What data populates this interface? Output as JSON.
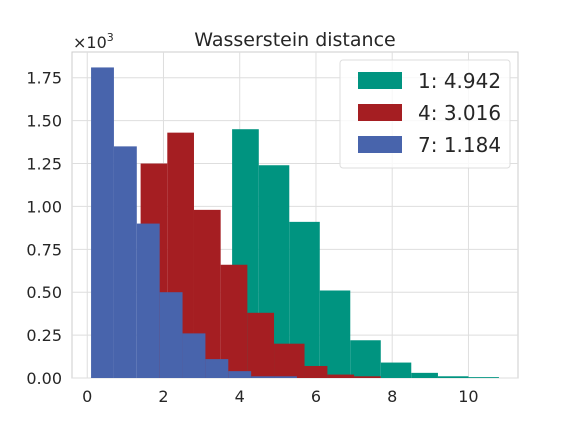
{
  "chart_data": {
    "type": "histogram",
    "title": "Wasserstein distance",
    "y_multiplier": {
      "base": "×10",
      "exponent": "3"
    },
    "xlabel": "",
    "ylabel": "",
    "xlim": [
      -0.4,
      11.3
    ],
    "ylim": [
      0,
      1.9
    ],
    "x_ticks": [
      0,
      2,
      4,
      6,
      8,
      10
    ],
    "x_tick_labels": [
      "0",
      "2",
      "4",
      "6",
      "8",
      "10"
    ],
    "y_ticks": [
      0,
      0.25,
      0.5,
      0.75,
      1.0,
      1.25,
      1.5,
      1.75
    ],
    "y_tick_labels": [
      "0.00",
      "0.25",
      "0.50",
      "0.75",
      "1.00",
      "1.25",
      "1.50",
      "1.75"
    ],
    "grid": true,
    "legend_position": "top-right",
    "series": [
      {
        "name": "1: 4.942",
        "color": "#009480",
        "bin_edges": [
          1.0,
          3.0,
          3.8,
          4.5,
          5.3,
          6.1,
          6.9,
          7.7,
          8.5,
          9.2,
          10.0,
          10.8
        ],
        "values": [
          0.0,
          0.02,
          1.45,
          1.24,
          0.91,
          0.51,
          0.22,
          0.09,
          0.03,
          0.01,
          0.005
        ]
      },
      {
        "name": "4: 3.016",
        "color": "#a51e22",
        "bin_edges": [
          1.4,
          2.1,
          2.8,
          3.5,
          4.2,
          4.9,
          5.7,
          6.3,
          7.0,
          7.7
        ],
        "values": [
          1.25,
          1.43,
          0.98,
          0.66,
          0.38,
          0.2,
          0.07,
          0.02,
          0.01
        ]
      },
      {
        "name": "7: 1.184",
        "color": "#4864ac",
        "bin_edges": [
          0.1,
          0.7,
          1.3,
          1.9,
          2.5,
          3.1,
          3.7,
          4.3,
          4.9,
          5.5
        ],
        "values": [
          1.81,
          1.35,
          0.9,
          0.5,
          0.26,
          0.11,
          0.04,
          0.01,
          0.01
        ]
      }
    ]
  }
}
